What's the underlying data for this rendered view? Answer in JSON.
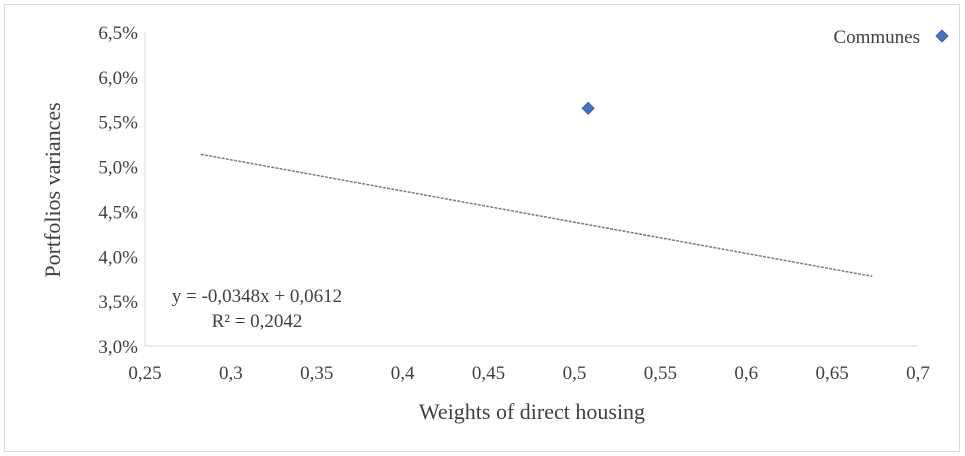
{
  "chart_data": {
    "type": "scatter",
    "xlabel": "Weights of direct housing",
    "ylabel": "Portfolios variances",
    "xlim": [
      0.25,
      0.7
    ],
    "ylim": [
      0.03,
      0.065
    ],
    "x_ticks": [
      0.25,
      0.3,
      0.35,
      0.4,
      0.45,
      0.5,
      0.55,
      0.6,
      0.65,
      0.7
    ],
    "x_tick_labels": [
      "0,25",
      "0,3",
      "0,35",
      "0,4",
      "0,45",
      "0,5",
      "0,55",
      "0,6",
      "0,65",
      "0,7"
    ],
    "y_ticks": [
      0.03,
      0.035,
      0.04,
      0.045,
      0.05,
      0.055,
      0.06,
      0.065
    ],
    "y_tick_labels": [
      "3,0%",
      "3,5%",
      "4,0%",
      "4,5%",
      "5,0%",
      "5,5%",
      "6,0%",
      "6,5%"
    ],
    "grid": false,
    "legend_position": "top-right",
    "series": [
      {
        "name": "Communes",
        "color": "#4472c4",
        "marker": "diamond",
        "points": [
          {
            "x": 0.508,
            "y": 0.0565
          }
        ]
      }
    ],
    "trendline": {
      "style": "dotted",
      "color": "#7f7f7f",
      "slope": -0.0348,
      "intercept": 0.0612,
      "x_start": 0.283,
      "x_end": 0.673,
      "equation": "y = -0,0348x + 0,0612",
      "r_squared": "R² = 0,2042"
    }
  }
}
